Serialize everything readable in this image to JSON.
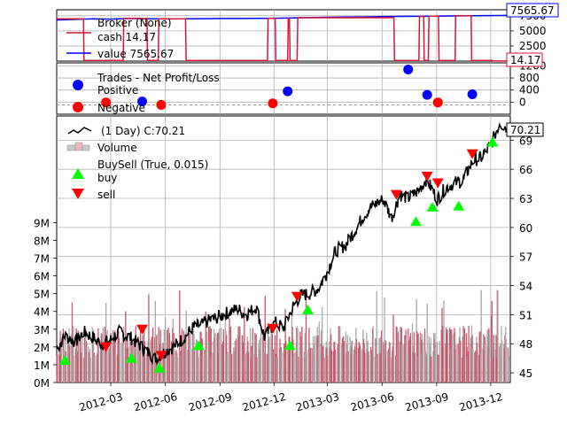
{
  "chart_data": [
    {
      "type": "line",
      "panel": "broker",
      "legend": [
        "Broker (None)",
        "cash 14.17",
        "value 7565.67"
      ],
      "y_ticks": [
        "2500",
        "5000",
        "7500"
      ],
      "ylim": [
        0,
        8500
      ],
      "badges": [
        "7565.67",
        "14.17"
      ],
      "colors": {
        "cash": "#dc143c",
        "value": "#0000ff"
      },
      "series": [
        {
          "key": "value",
          "x": [
            "2011-12-01",
            "2012-01-01",
            "2012-02-01",
            "2012-03-01",
            "2012-04-01",
            "2012-05-01",
            "2012-06-01",
            "2012-07-01",
            "2012-08-01",
            "2012-09-01",
            "2012-10-01",
            "2012-11-01",
            "2012-12-01",
            "2013-01-01",
            "2013-02-01",
            "2013-03-01",
            "2013-04-01",
            "2013-05-01",
            "2013-06-01",
            "2013-07-01",
            "2013-08-01",
            "2013-09-01",
            "2013-10-01",
            "2013-11-01",
            "2013-12-01",
            "2013-12-31"
          ],
          "values": [
            6800,
            6900,
            7000,
            6950,
            7050,
            7000,
            6980,
            7000,
            7020,
            7050,
            7050,
            7080,
            7100,
            7150,
            7200,
            7250,
            7280,
            7320,
            7350,
            7400,
            7420,
            7450,
            7480,
            7500,
            7540,
            7565.67
          ]
        },
        {
          "key": "cash",
          "x": [
            "2011-12-01",
            "2012-01-15",
            "2012-01-16",
            "2012-03-22",
            "2012-03-23",
            "2012-05-01",
            "2012-05-02",
            "2012-05-20",
            "2012-05-21",
            "2012-07-05",
            "2012-07-06",
            "2012-11-20",
            "2012-11-21",
            "2012-12-03",
            "2012-12-04",
            "2012-12-24",
            "2012-12-25",
            "2012-12-27",
            "2012-12-28",
            "2013-01-09",
            "2013-01-10",
            "2013-06-21",
            "2013-06-22",
            "2013-08-02",
            "2013-08-03",
            "2013-08-10",
            "2013-08-11",
            "2013-08-18",
            "2013-08-19",
            "2013-09-04",
            "2013-09-05",
            "2013-10-02",
            "2013-10-03",
            "2013-10-29",
            "2013-10-30",
            "2013-12-04",
            "2013-12-05",
            "2013-12-31"
          ],
          "values": [
            7000,
            7000,
            100,
            100,
            7050,
            7050,
            100,
            100,
            7000,
            7000,
            100,
            100,
            7080,
            7080,
            100,
            100,
            7100,
            7100,
            100,
            100,
            7180,
            7180,
            100,
            100,
            7400,
            7400,
            100,
            100,
            7450,
            7450,
            100,
            100,
            7500,
            7500,
            100,
            100,
            14.17,
            14.17
          ]
        }
      ]
    },
    {
      "type": "scatter",
      "panel": "trades",
      "legend": [
        "Trades - Net Profit/Loss",
        "Positive",
        "Negative"
      ],
      "y_ticks": [
        "0",
        "400",
        "800",
        "1200"
      ],
      "ylim": [
        -400,
        1300
      ],
      "series": [
        {
          "name": "Positive",
          "color": "#0000ff",
          "x": [
            "2012-04-23",
            "2012-12-24",
            "2013-07-15",
            "2013-08-16",
            "2013-10-31"
          ],
          "values": [
            20,
            360,
            1080,
            240,
            260
          ]
        },
        {
          "name": "Negative",
          "color": "#ff0000",
          "x": [
            "2012-02-22",
            "2012-05-25",
            "2012-11-29",
            "2013-09-03"
          ],
          "values": [
            -10,
            -90,
            -40,
            -10
          ]
        }
      ]
    },
    {
      "type": "line",
      "panel": "price",
      "legend_title": "(1 Day) C:70.21",
      "legend": [
        "Volume",
        "BuySell (True, 0.015)",
        "buy",
        "sell"
      ],
      "price_ticks": [
        "45",
        "48",
        "51",
        "54",
        "57",
        "60",
        "63",
        "66",
        "69"
      ],
      "price_ylim": [
        44.0,
        71.5
      ],
      "volume_ticks": [
        "0M",
        "1M",
        "2M",
        "3M",
        "4M",
        "5M",
        "6M",
        "7M",
        "8M",
        "9M"
      ],
      "volume_ylim": [
        0,
        15
      ],
      "x_ticks": [
        "2012-03",
        "2012-06",
        "2012-09",
        "2012-12",
        "2013-03",
        "2013-06",
        "2013-09",
        "2013-12"
      ],
      "x_tick_dates": [
        "2012-03-01",
        "2012-06-01",
        "2012-09-01",
        "2012-12-01",
        "2013-03-01",
        "2013-06-01",
        "2013-09-01",
        "2013-12-01"
      ],
      "xlim": [
        "2011-12-01",
        "2014-01-03"
      ],
      "last_close": "70.21",
      "colors": {
        "close": "#000000",
        "buy": "#00ff00",
        "sell": "#ff0000",
        "volume_up": "#c8566a",
        "volume_down": "#a9a9a9"
      },
      "close": {
        "x": [
          "2011-12-01",
          "2011-12-15",
          "2012-01-02",
          "2012-01-16",
          "2012-02-01",
          "2012-02-15",
          "2012-03-01",
          "2012-03-15",
          "2012-04-02",
          "2012-04-16",
          "2012-05-01",
          "2012-05-15",
          "2012-06-01",
          "2012-06-15",
          "2012-07-02",
          "2012-07-16",
          "2012-08-01",
          "2012-08-15",
          "2012-09-03",
          "2012-09-17",
          "2012-10-01",
          "2012-10-15",
          "2012-11-01",
          "2012-11-15",
          "2012-12-03",
          "2012-12-17",
          "2013-01-02",
          "2013-01-15",
          "2013-02-01",
          "2013-02-15",
          "2013-03-01",
          "2013-03-15",
          "2013-04-01",
          "2013-04-15",
          "2013-05-01",
          "2013-05-15",
          "2013-06-03",
          "2013-06-17",
          "2013-07-01",
          "2013-07-15",
          "2013-08-01",
          "2013-08-15",
          "2013-09-02",
          "2013-09-16",
          "2013-10-01",
          "2013-10-15",
          "2013-11-01",
          "2013-11-15",
          "2013-12-02",
          "2013-12-16",
          "2013-12-31"
        ],
        "values": [
          47.5,
          48.8,
          48.2,
          49.2,
          48.6,
          48.0,
          48.4,
          49.2,
          48.7,
          48.0,
          47.2,
          46.5,
          47.2,
          47.7,
          48.6,
          49.6,
          50.0,
          50.4,
          50.9,
          51.3,
          51.6,
          51.0,
          51.8,
          48.7,
          50.2,
          49.6,
          51.8,
          53.0,
          53.2,
          53.8,
          55.5,
          57.6,
          58.2,
          59.6,
          61.2,
          62.2,
          62.9,
          61.0,
          63.4,
          63.0,
          63.8,
          65.0,
          62.9,
          64.1,
          64.6,
          64.8,
          66.9,
          67.2,
          68.6,
          70.8,
          70.21
        ]
      },
      "buy": {
        "x": [
          "2011-12-15",
          "2012-04-05",
          "2012-05-22",
          "2012-07-27",
          "2012-12-28",
          "2013-01-27",
          "2013-07-28",
          "2013-08-25",
          "2013-10-08",
          "2013-12-04"
        ],
        "values": [
          46.3,
          46.5,
          45.5,
          47.8,
          47.8,
          51.5,
          60.6,
          62.1,
          62.2,
          68.8
        ]
      },
      "sell": {
        "x": [
          "2012-02-22",
          "2012-04-23",
          "2012-05-25",
          "2012-11-29",
          "2013-01-09",
          "2013-06-25",
          "2013-08-16",
          "2013-09-03",
          "2013-10-31"
        ],
        "values": [
          47.7,
          49.5,
          46.8,
          49.6,
          52.9,
          63.4,
          65.3,
          64.6,
          67.6
        ]
      }
    }
  ]
}
